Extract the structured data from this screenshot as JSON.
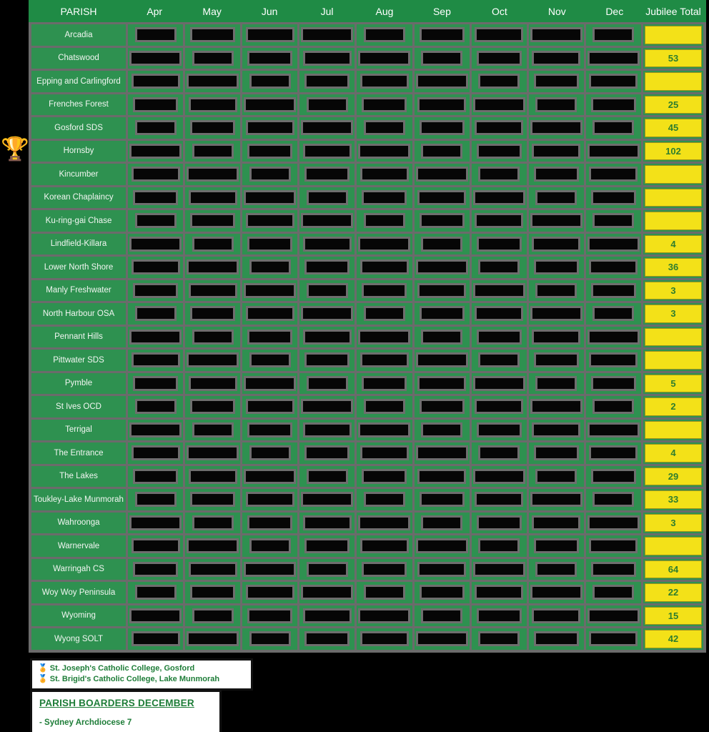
{
  "colors": {
    "page_background": "#000000",
    "header_green": "#1f8b45",
    "cell_green": "#2e9150",
    "grid_grey": "#6b6b6b",
    "redaction_black": "#060606",
    "total_yellow": "#f3e118",
    "total_text_green": "#2e7d2e",
    "footer_text_green": "#1e7d38"
  },
  "table": {
    "header": {
      "parish_label": "PARISH",
      "months": [
        "Apr",
        "May",
        "Jun",
        "Jul",
        "Aug",
        "Sep",
        "Oct",
        "Nov",
        "Dec"
      ],
      "total_label": "Jubilee Total"
    },
    "rows": [
      {
        "parish": "Arcadia",
        "total": ""
      },
      {
        "parish": "Chatswood",
        "total": "53"
      },
      {
        "parish": "Epping and Carlingford",
        "total": ""
      },
      {
        "parish": "Frenches Forest",
        "total": "25"
      },
      {
        "parish": "Gosford SDS",
        "total": "45"
      },
      {
        "parish": "Hornsby",
        "total": "102"
      },
      {
        "parish": "Kincumber",
        "total": ""
      },
      {
        "parish": "Korean Chaplaincy",
        "total": ""
      },
      {
        "parish": "Ku-ring-gai Chase",
        "total": ""
      },
      {
        "parish": "Lindfield-Killara",
        "total": "4"
      },
      {
        "parish": "Lower North Shore",
        "total": "36"
      },
      {
        "parish": "Manly Freshwater",
        "total": "3"
      },
      {
        "parish": "North Harbour OSA",
        "total": "3"
      },
      {
        "parish": "Pennant Hills",
        "total": ""
      },
      {
        "parish": "Pittwater SDS",
        "total": ""
      },
      {
        "parish": "Pymble",
        "total": "5"
      },
      {
        "parish": "St Ives OCD",
        "total": "2"
      },
      {
        "parish": "Terrigal",
        "total": ""
      },
      {
        "parish": "The Entrance",
        "total": "4"
      },
      {
        "parish": "The Lakes",
        "total": "29"
      },
      {
        "parish": "Toukley-Lake Munmorah",
        "total": "33"
      },
      {
        "parish": "Wahroonga",
        "total": "3"
      },
      {
        "parish": "Warnervale",
        "total": ""
      },
      {
        "parish": "Warringah CS",
        "total": "64"
      },
      {
        "parish": "Woy Woy Peninsula",
        "total": "22"
      },
      {
        "parish": "Wyoming",
        "total": "15"
      },
      {
        "parish": "Wyong SOLT",
        "total": "42"
      }
    ],
    "redacted_note": "monthly values are blacked out in the source image"
  },
  "trophy_icon": "🏆",
  "footer": {
    "awards": [
      {
        "icon": "🏅",
        "text": "St. Joseph's Catholic College, Gosford"
      },
      {
        "icon": "🏅",
        "text": "St. Brigid's Catholic College, Lake Munmorah"
      }
    ],
    "notice": {
      "heading": "PARISH BOARDERS DECEMBER",
      "line": "- Sydney Archdiocese 7"
    }
  }
}
